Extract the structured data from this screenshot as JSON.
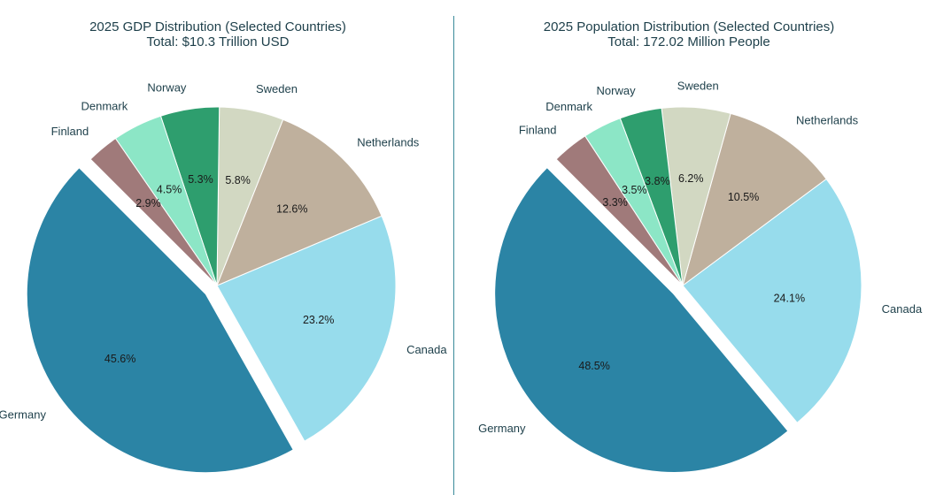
{
  "chart_data": [
    {
      "type": "pie",
      "title": "2025 GDP Distribution (Selected Countries)",
      "subtitle": "Total: $10.3 Trillion USD",
      "categories": [
        "Germany",
        "Canada",
        "Netherlands",
        "Sweden",
        "Norway",
        "Denmark",
        "Finland"
      ],
      "values": [
        45.6,
        23.2,
        12.6,
        5.8,
        5.3,
        4.5,
        2.9
      ],
      "value_labels": [
        "45.6%",
        "23.2%",
        "12.6%",
        "5.8%",
        "5.3%",
        "4.5%",
        "2.9%"
      ],
      "colors": [
        "#2b84a5",
        "#97dcec",
        "#bfb09d",
        "#d2d8c2",
        "#2e9e6e",
        "#8ce6c6",
        "#a07a7a"
      ],
      "exploded": "Germany"
    },
    {
      "type": "pie",
      "title": "2025 Population Distribution (Selected Countries)",
      "subtitle": "Total: 172.02 Million People",
      "categories": [
        "Germany",
        "Canada",
        "Netherlands",
        "Sweden",
        "Norway",
        "Denmark",
        "Finland"
      ],
      "values": [
        48.5,
        24.1,
        10.5,
        6.2,
        3.8,
        3.5,
        3.3
      ],
      "value_labels": [
        "48.5%",
        "24.1%",
        "10.5%",
        "6.2%",
        "3.8%",
        "3.5%",
        "3.3%"
      ],
      "colors": [
        "#2b84a5",
        "#97dcec",
        "#bfb09d",
        "#d2d8c2",
        "#2e9e6e",
        "#8ce6c6",
        "#a07a7a"
      ],
      "exploded": "Germany"
    }
  ]
}
